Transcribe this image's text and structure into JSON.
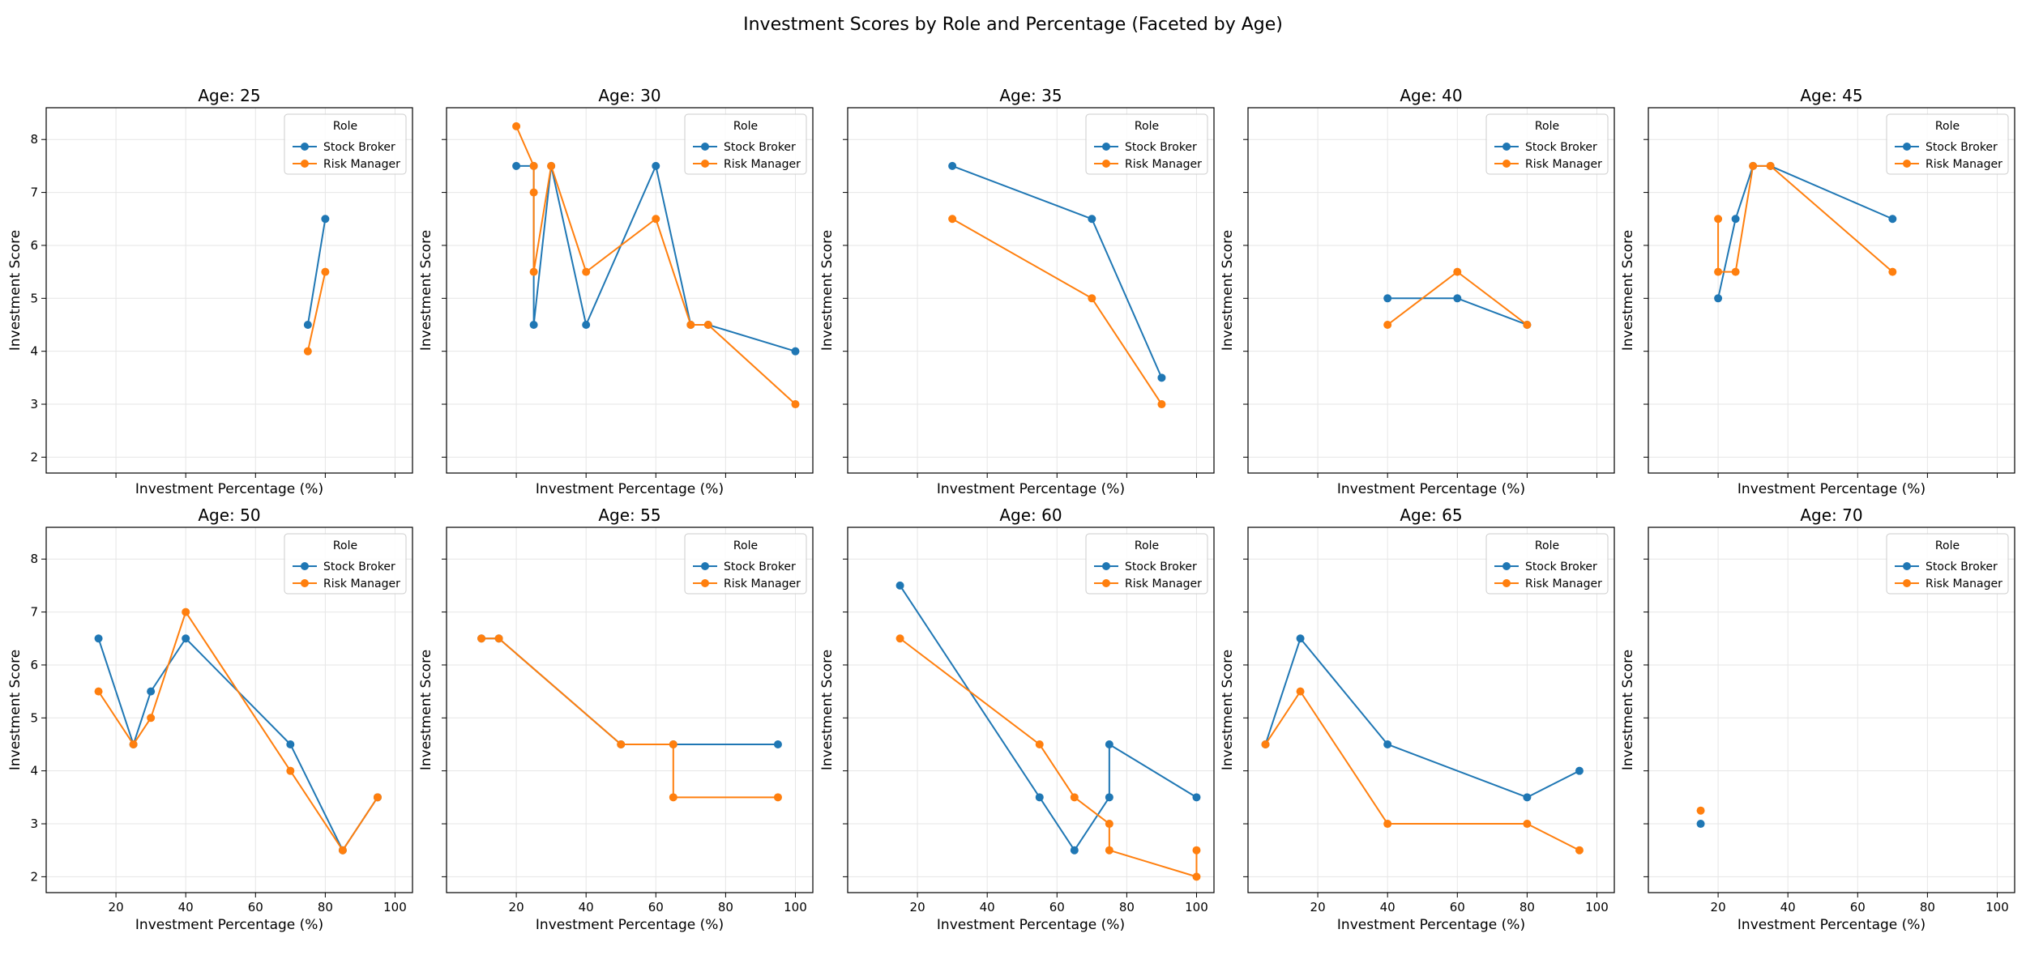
{
  "figure_title": "Investment Scores by Role and Percentage (Faceted by Age)",
  "colors": {
    "Stock Broker": "#1f77b4",
    "Risk Manager": "#ff7f0e"
  },
  "chart_data": {
    "type": "line",
    "xlabel": "Investment Percentage (%)",
    "ylabel": "Investment Score",
    "xlim": [
      0,
      105
    ],
    "ylim": [
      1.7,
      8.6
    ],
    "xticks": [
      20,
      40,
      60,
      80,
      100
    ],
    "yticks": [
      2,
      3,
      4,
      5,
      6,
      7,
      8
    ],
    "grid": true,
    "shared_axes": true,
    "legend": {
      "title": "Role",
      "entries": [
        "Stock Broker",
        "Risk Manager"
      ],
      "placement": "upper-right"
    },
    "facets": [
      {
        "title": "Age: 25",
        "series": [
          {
            "name": "Stock Broker",
            "points": [
              [
                75,
                4.5
              ],
              [
                80,
                6.5
              ]
            ]
          },
          {
            "name": "Risk Manager",
            "points": [
              [
                75,
                4.0
              ],
              [
                80,
                5.5
              ]
            ]
          }
        ]
      },
      {
        "title": "Age: 30",
        "series": [
          {
            "name": "Stock Broker",
            "points": [
              [
                20,
                7.5
              ],
              [
                25,
                7.5
              ],
              [
                25,
                4.5
              ],
              [
                30,
                7.5
              ],
              [
                40,
                4.5
              ],
              [
                60,
                7.5
              ],
              [
                70,
                4.5
              ],
              [
                75,
                4.5
              ],
              [
                100,
                4.0
              ]
            ]
          },
          {
            "name": "Risk Manager",
            "points": [
              [
                20,
                8.25
              ],
              [
                25,
                7.5
              ],
              [
                25,
                7.0
              ],
              [
                25,
                5.5
              ],
              [
                30,
                7.5
              ],
              [
                40,
                5.5
              ],
              [
                60,
                6.5
              ],
              [
                70,
                4.5
              ],
              [
                75,
                4.5
              ],
              [
                100,
                3.0
              ]
            ]
          }
        ]
      },
      {
        "title": "Age: 35",
        "series": [
          {
            "name": "Stock Broker",
            "points": [
              [
                30,
                7.5
              ],
              [
                70,
                6.5
              ],
              [
                90,
                3.5
              ]
            ]
          },
          {
            "name": "Risk Manager",
            "points": [
              [
                30,
                6.5
              ],
              [
                70,
                5.0
              ],
              [
                90,
                3.0
              ]
            ]
          }
        ]
      },
      {
        "title": "Age: 40",
        "series": [
          {
            "name": "Stock Broker",
            "points": [
              [
                40,
                5.0
              ],
              [
                60,
                5.0
              ],
              [
                80,
                4.5
              ]
            ]
          },
          {
            "name": "Risk Manager",
            "points": [
              [
                40,
                4.5
              ],
              [
                60,
                5.5
              ],
              [
                80,
                4.5
              ]
            ]
          }
        ]
      },
      {
        "title": "Age: 45",
        "series": [
          {
            "name": "Stock Broker",
            "points": [
              [
                20,
                5.0
              ],
              [
                25,
                6.5
              ],
              [
                30,
                7.5
              ],
              [
                35,
                7.5
              ],
              [
                70,
                6.5
              ]
            ]
          },
          {
            "name": "Risk Manager",
            "points": [
              [
                20,
                6.5
              ],
              [
                20,
                5.5
              ],
              [
                25,
                5.5
              ],
              [
                30,
                7.5
              ],
              [
                35,
                7.5
              ],
              [
                70,
                5.5
              ]
            ]
          }
        ]
      },
      {
        "title": "Age: 50",
        "series": [
          {
            "name": "Stock Broker",
            "points": [
              [
                15,
                6.5
              ],
              [
                25,
                4.5
              ],
              [
                30,
                5.5
              ],
              [
                40,
                6.5
              ],
              [
                70,
                4.5
              ],
              [
                85,
                2.5
              ],
              [
                95,
                3.5
              ]
            ]
          },
          {
            "name": "Risk Manager",
            "points": [
              [
                15,
                5.5
              ],
              [
                25,
                4.5
              ],
              [
                30,
                5.0
              ],
              [
                40,
                7.0
              ],
              [
                70,
                4.0
              ],
              [
                85,
                2.5
              ],
              [
                95,
                3.5
              ]
            ]
          }
        ]
      },
      {
        "title": "Age: 55",
        "series": [
          {
            "name": "Stock Broker",
            "points": [
              [
                10,
                6.5
              ],
              [
                15,
                6.5
              ],
              [
                50,
                4.5
              ],
              [
                65,
                4.5
              ],
              [
                95,
                4.5
              ]
            ]
          },
          {
            "name": "Risk Manager",
            "points": [
              [
                10,
                6.5
              ],
              [
                15,
                6.5
              ],
              [
                50,
                4.5
              ],
              [
                65,
                4.5
              ],
              [
                65,
                3.5
              ],
              [
                95,
                3.5
              ]
            ]
          }
        ]
      },
      {
        "title": "Age: 60",
        "series": [
          {
            "name": "Stock Broker",
            "points": [
              [
                15,
                7.5
              ],
              [
                55,
                3.5
              ],
              [
                65,
                2.5
              ],
              [
                75,
                3.5
              ],
              [
                75,
                4.5
              ],
              [
                100,
                3.5
              ]
            ]
          },
          {
            "name": "Risk Manager",
            "points": [
              [
                15,
                6.5
              ],
              [
                55,
                4.5
              ],
              [
                65,
                3.5
              ],
              [
                75,
                3.0
              ],
              [
                75,
                2.5
              ],
              [
                100,
                2.0
              ],
              [
                100,
                2.5
              ]
            ]
          }
        ]
      },
      {
        "title": "Age: 65",
        "series": [
          {
            "name": "Stock Broker",
            "points": [
              [
                5,
                4.5
              ],
              [
                15,
                6.5
              ],
              [
                40,
                4.5
              ],
              [
                80,
                3.5
              ],
              [
                95,
                4.0
              ]
            ]
          },
          {
            "name": "Risk Manager",
            "points": [
              [
                5,
                4.5
              ],
              [
                15,
                5.5
              ],
              [
                40,
                3.0
              ],
              [
                80,
                3.0
              ],
              [
                95,
                2.5
              ]
            ]
          }
        ]
      },
      {
        "title": "Age: 70",
        "series": [
          {
            "name": "Stock Broker",
            "points": [
              [
                15,
                3.0
              ]
            ]
          },
          {
            "name": "Risk Manager",
            "points": [
              [
                15,
                3.25
              ]
            ]
          }
        ]
      }
    ]
  }
}
